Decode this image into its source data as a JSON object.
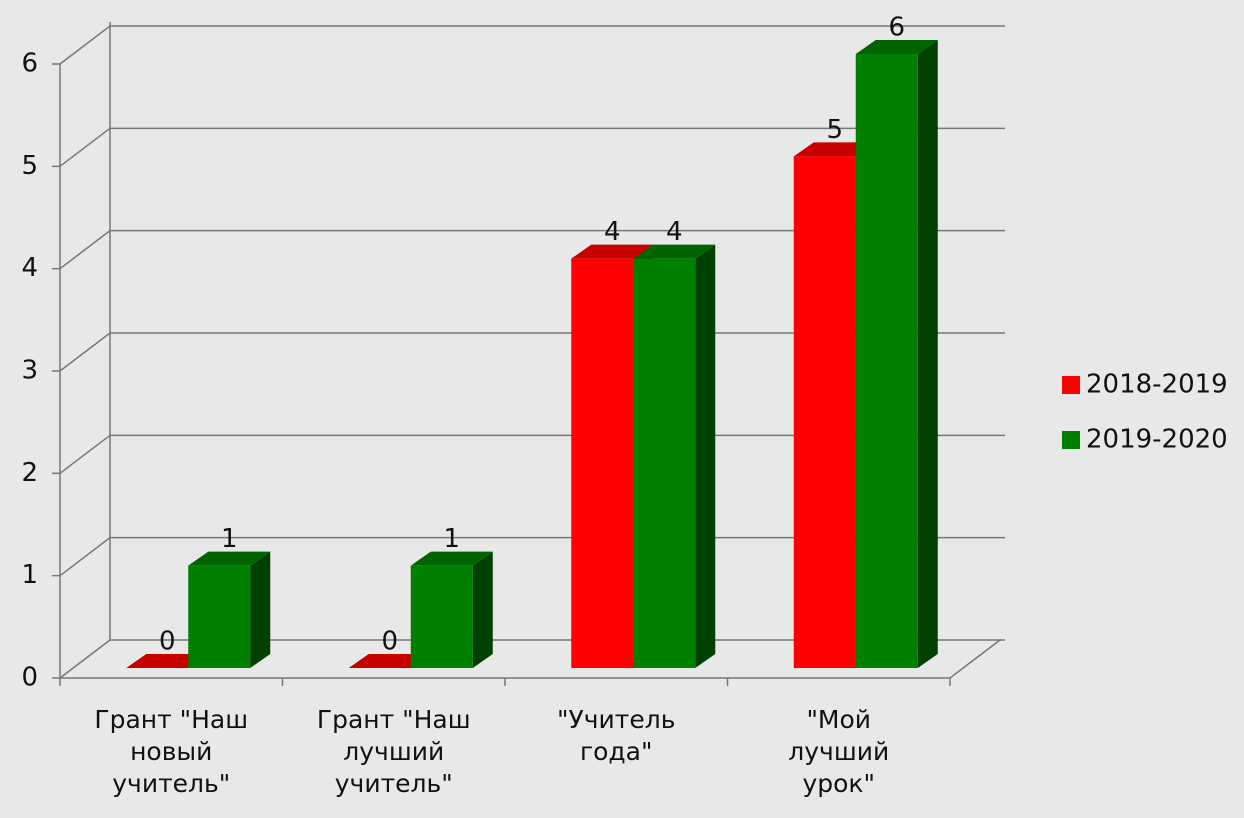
{
  "chart_data": {
    "type": "bar3d",
    "categories": [
      "Грант \"Наш новый учитель\"",
      "Грант \"Наш лучший учитель\"",
      "\"Учитель года\"",
      "\"Мой лучший урок\""
    ],
    "series": [
      {
        "name": "2018-2019",
        "color": "#ff0000",
        "values": [
          0,
          0,
          4,
          5
        ]
      },
      {
        "name": "2019-2020",
        "color": "#008000",
        "values": [
          1,
          1,
          4,
          6
        ]
      }
    ],
    "ylim": [
      0,
      6
    ],
    "yticks": [
      0,
      1,
      2,
      3,
      4,
      5,
      6
    ],
    "grid": true,
    "legend": "right"
  }
}
